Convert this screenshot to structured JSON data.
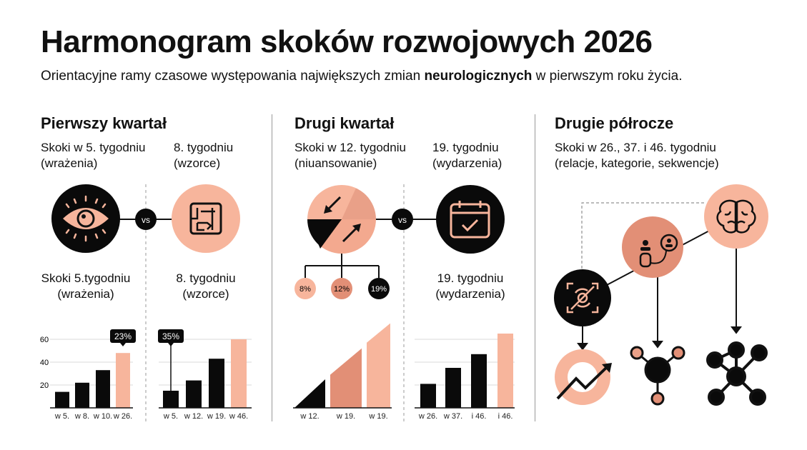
{
  "header": {
    "title": "Harmonogram skoków rozwojowych 2026",
    "subtitle_before": "Orientacyjne ramy czasowe występowania największych zmian ",
    "subtitle_bold": "neurologicznych",
    "subtitle_after": " w pierwszym roku życia."
  },
  "colors": {
    "black": "#0a0a0a",
    "peach": "#f7b59c",
    "salmon": "#e28f76",
    "grid": "#d9d9d9"
  },
  "sections": [
    {
      "heading": "Pierwszy kwartał",
      "left_label": [
        "Skoki w 5. tygodniu",
        "(wrażenia)"
      ],
      "right_label": [
        "8. tygodniu",
        "(wzorce)"
      ],
      "left_icon": "eye-icon",
      "right_icon": "maze-pattern-icon",
      "vs": "vs",
      "lower_left_label": [
        "Skoki 5.tygodniu",
        "(wrażenia)"
      ],
      "lower_right_label": [
        "8. tygodniu",
        "(wzorce)"
      ]
    },
    {
      "heading": "Drugi kwartał",
      "left_label": [
        "Skoki w 12. tygodniu",
        "(niuansowanie)"
      ],
      "right_label": [
        "19. tygodniu",
        "(wydarzenia)"
      ],
      "left_icon": "transition-arrows-icon",
      "right_icon": "calendar-check-icon",
      "vs": "vs",
      "branches": [
        "8%",
        "12%",
        "19%"
      ],
      "lower_right_label": [
        "19. tygodniu",
        "(wydarzenia)"
      ]
    },
    {
      "heading": "Drugie półrocze",
      "label": [
        "Skoki w 26., 37. i 46. tygodniu",
        "(relacje, kategorie, sekwencje)"
      ],
      "icons": [
        "focus-target-icon",
        "relationship-people-icon",
        "brain-icon",
        "trend-up-icon",
        "hub-network-icon",
        "sequence-network-icon"
      ]
    }
  ],
  "chart_data": [
    {
      "type": "bar",
      "categories": [
        "w 5.",
        "w 8.",
        "w 10.",
        "w 26."
      ],
      "values": [
        14,
        22,
        33,
        48
      ],
      "highlight_index": 3,
      "callout": "23%",
      "yticks": [
        20,
        40,
        60
      ],
      "ylim": [
        0,
        65
      ],
      "grid": true
    },
    {
      "type": "bar",
      "categories": [
        "w 5.",
        "w 12.",
        "w 19.",
        "w 46."
      ],
      "values": [
        15,
        24,
        43,
        60
      ],
      "highlight_index": 3,
      "callout": "35%",
      "callout_index": 0,
      "ylim": [
        0,
        65
      ],
      "grid": true
    },
    {
      "type": "area",
      "categories": [
        "w 12.",
        "w 19.",
        "w 19."
      ],
      "segments": [
        [
          0,
          25
        ],
        [
          29,
          52
        ],
        [
          57,
          74
        ]
      ],
      "ylim": [
        0,
        65
      ],
      "grid": false
    },
    {
      "type": "bar",
      "categories": [
        "w 26.",
        "w 37.",
        "i 46.",
        "i 46."
      ],
      "values": [
        21,
        35,
        47,
        65
      ],
      "highlight_index": 3,
      "ylim": [
        0,
        65
      ],
      "grid": true
    }
  ]
}
